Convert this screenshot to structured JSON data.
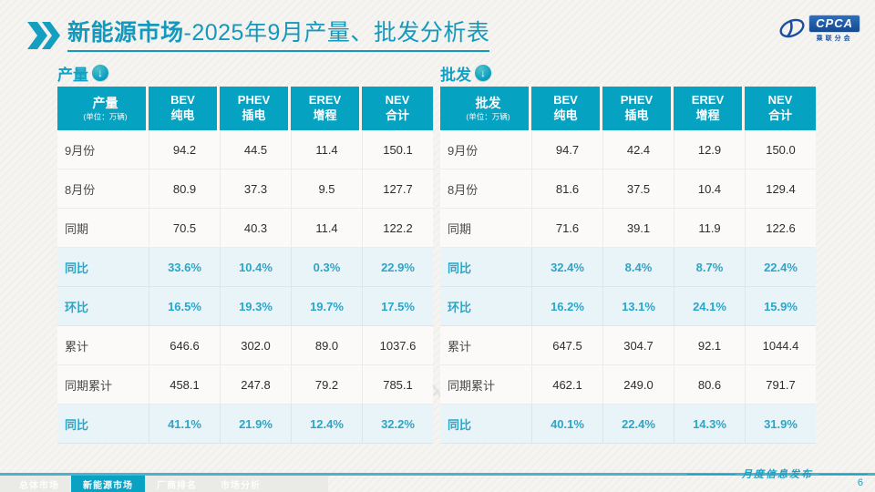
{
  "header": {
    "title_bold": "新能源市场",
    "title_rest": "-2025年9月产量、批发分析表",
    "logo_text": "CPCA",
    "logo_sub": "乘联分会"
  },
  "icons": {
    "section_arrow": "↓",
    "chevron": "double-right-chevron"
  },
  "watermark_text": "CPCA 乘联分会",
  "tables": [
    {
      "section_label": "产量",
      "first_header": "产量",
      "unit": "(单位：万辆)",
      "columns": [
        [
          "BEV",
          "纯电"
        ],
        [
          "PHEV",
          "插电"
        ],
        [
          "EREV",
          "增程"
        ],
        [
          "NEV",
          "合计"
        ]
      ],
      "rows": [
        {
          "label": "9月份",
          "style": "normal",
          "values": [
            "94.2",
            "44.5",
            "11.4",
            "150.1"
          ]
        },
        {
          "label": "8月份",
          "style": "normal",
          "values": [
            "80.9",
            "37.3",
            "9.5",
            "127.7"
          ]
        },
        {
          "label": "同期",
          "style": "normal",
          "values": [
            "70.5",
            "40.3",
            "11.4",
            "122.2"
          ]
        },
        {
          "label": "同比",
          "style": "percent",
          "values": [
            "33.6%",
            "10.4%",
            "0.3%",
            "22.9%"
          ]
        },
        {
          "label": "环比",
          "style": "percent",
          "values": [
            "16.5%",
            "19.3%",
            "19.7%",
            "17.5%"
          ]
        },
        {
          "label": "累计",
          "style": "normal",
          "values": [
            "646.6",
            "302.0",
            "89.0",
            "1037.6"
          ]
        },
        {
          "label": "同期累计",
          "style": "normal",
          "values": [
            "458.1",
            "247.8",
            "79.2",
            "785.1"
          ]
        },
        {
          "label": "同比",
          "style": "percent",
          "values": [
            "41.1%",
            "21.9%",
            "12.4%",
            "32.2%"
          ]
        }
      ]
    },
    {
      "section_label": "批发",
      "first_header": "批发",
      "unit": "(单位：万辆)",
      "columns": [
        [
          "BEV",
          "纯电"
        ],
        [
          "PHEV",
          "插电"
        ],
        [
          "EREV",
          "增程"
        ],
        [
          "NEV",
          "合计"
        ]
      ],
      "rows": [
        {
          "label": "9月份",
          "style": "normal",
          "values": [
            "94.7",
            "42.4",
            "12.9",
            "150.0"
          ]
        },
        {
          "label": "8月份",
          "style": "normal",
          "values": [
            "81.6",
            "37.5",
            "10.4",
            "129.4"
          ]
        },
        {
          "label": "同期",
          "style": "normal",
          "values": [
            "71.6",
            "39.1",
            "11.9",
            "122.6"
          ]
        },
        {
          "label": "同比",
          "style": "percent",
          "values": [
            "32.4%",
            "8.4%",
            "8.7%",
            "22.4%"
          ]
        },
        {
          "label": "环比",
          "style": "percent",
          "values": [
            "16.2%",
            "13.1%",
            "24.1%",
            "15.9%"
          ]
        },
        {
          "label": "累计",
          "style": "normal",
          "values": [
            "647.5",
            "304.7",
            "92.1",
            "1044.4"
          ]
        },
        {
          "label": "同期累计",
          "style": "normal",
          "values": [
            "462.1",
            "249.0",
            "80.6",
            "791.7"
          ]
        },
        {
          "label": "同比",
          "style": "percent",
          "values": [
            "40.1%",
            "22.4%",
            "14.3%",
            "31.9%"
          ]
        }
      ]
    }
  ],
  "footer": {
    "tabs": [
      {
        "label": "总体市场",
        "active": false
      },
      {
        "label": "新能源市场",
        "active": true
      },
      {
        "label": "厂商排名",
        "active": false
      },
      {
        "label": "市场分析",
        "active": false
      }
    ],
    "publication": "月度信息发布",
    "page_number": "6"
  },
  "colors": {
    "accent_teal": "#05A2C2",
    "title_teal": "#1399BD",
    "percent_text": "#29A6C8",
    "percent_row_bg": "#E9F4F9",
    "logo_blue": "#17498F",
    "footer_line": "#49B3CF",
    "slide_bg": "#F5F4F1"
  }
}
